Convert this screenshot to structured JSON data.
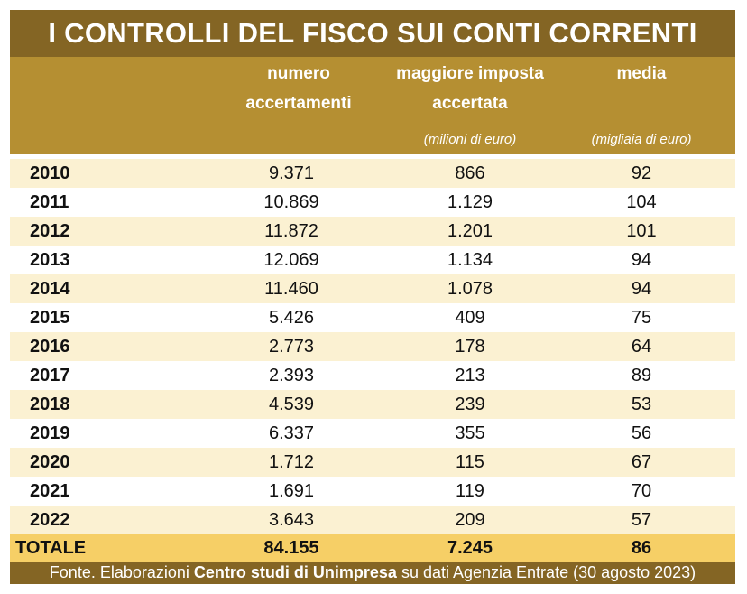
{
  "title": "I CONTROLLI DEL FISCO SUI CONTI CORRENTI",
  "columns": [
    {
      "label": "numero accertamenti",
      "line1": "numero",
      "line2": "accertamenti",
      "unit": ""
    },
    {
      "label": "maggiore imposta accertata",
      "line1": "maggiore imposta",
      "line2": "accertata",
      "unit": "(milioni di euro)"
    },
    {
      "label": "media",
      "line1": "media",
      "line2": "",
      "unit": "(migliaia di euro)"
    }
  ],
  "rows": [
    {
      "year": "2010",
      "numero": "9.371",
      "imposta": "866",
      "media": "92"
    },
    {
      "year": "2011",
      "numero": "10.869",
      "imposta": "1.129",
      "media": "104"
    },
    {
      "year": "2012",
      "numero": "11.872",
      "imposta": "1.201",
      "media": "101"
    },
    {
      "year": "2013",
      "numero": "12.069",
      "imposta": "1.134",
      "media": "94"
    },
    {
      "year": "2014",
      "numero": "11.460",
      "imposta": "1.078",
      "media": "94"
    },
    {
      "year": "2015",
      "numero": "5.426",
      "imposta": "409",
      "media": "75"
    },
    {
      "year": "2016",
      "numero": "2.773",
      "imposta": "178",
      "media": "64"
    },
    {
      "year": "2017",
      "numero": "2.393",
      "imposta": "213",
      "media": "89"
    },
    {
      "year": "2018",
      "numero": "4.539",
      "imposta": "239",
      "media": "53"
    },
    {
      "year": "2019",
      "numero": "6.337",
      "imposta": "355",
      "media": "56"
    },
    {
      "year": "2020",
      "numero": "1.712",
      "imposta": "115",
      "media": "67"
    },
    {
      "year": "2021",
      "numero": "1.691",
      "imposta": "119",
      "media": "70"
    },
    {
      "year": "2022",
      "numero": "3.643",
      "imposta": "209",
      "media": "57"
    }
  ],
  "total": {
    "label": "TOTALE",
    "numero": "84.155",
    "imposta": "7.245",
    "media": "86"
  },
  "footer": {
    "prefix": "Fonte. Elaborazioni",
    "bold": "Centro studi di Unimpresa",
    "suffix": "su dati Agenzia Entrate (30 agosto 2023)"
  },
  "colors": {
    "title_bg": "#846524",
    "header_bg": "#b58f32",
    "row_alt_bg": "#fbf1d2",
    "total_bg": "#f6cf66"
  },
  "chart_data": {
    "type": "table",
    "title": "I CONTROLLI DEL FISCO SUI CONTI CORRENTI",
    "columns": [
      "",
      "numero accertamenti",
      "maggiore imposta accertata (milioni di euro)",
      "media (migliaia di euro)"
    ],
    "rows": [
      [
        "2010",
        9371,
        866,
        92
      ],
      [
        "2011",
        10869,
        1129,
        104
      ],
      [
        "2012",
        11872,
        1201,
        101
      ],
      [
        "2013",
        12069,
        1134,
        94
      ],
      [
        "2014",
        11460,
        1078,
        94
      ],
      [
        "2015",
        5426,
        409,
        75
      ],
      [
        "2016",
        2773,
        178,
        64
      ],
      [
        "2017",
        2393,
        213,
        89
      ],
      [
        "2018",
        4539,
        239,
        53
      ],
      [
        "2019",
        6337,
        355,
        56
      ],
      [
        "2020",
        1712,
        115,
        67
      ],
      [
        "2021",
        1691,
        119,
        70
      ],
      [
        "2022",
        3643,
        209,
        57
      ],
      [
        "TOTALE",
        84155,
        7245,
        86
      ]
    ]
  }
}
